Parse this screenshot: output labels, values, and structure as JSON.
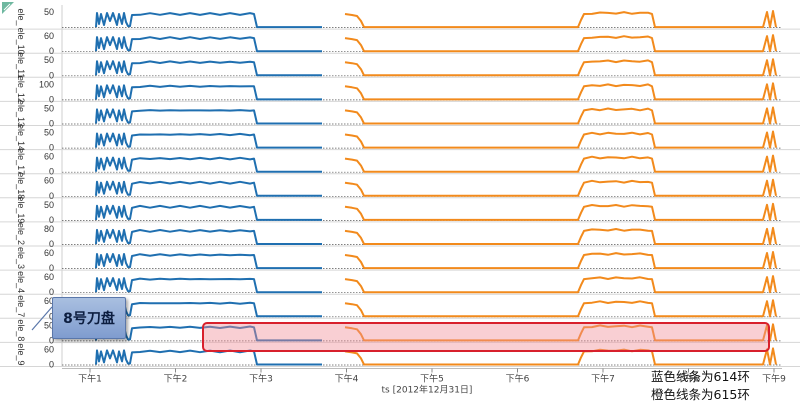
{
  "chart_data": {
    "type": "line",
    "xlabel": "ts [2012年12月31日]",
    "x_ticks": [
      "下午1",
      "下午2",
      "下午3",
      "下午4",
      "下午5",
      "下午6",
      "下午7",
      "下午8",
      "下午9"
    ],
    "series_colors": {
      "614": "#1f6fb0",
      "615": "#f28a1c"
    },
    "rows": [
      {
        "label": "ele_",
        "ticks": [
          "50",
          ""
        ]
      },
      {
        "label": "ele_10",
        "ticks": [
          "60",
          "0"
        ]
      },
      {
        "label": "ele_11",
        "ticks": [
          "50",
          "0"
        ]
      },
      {
        "label": "ele_12",
        "ticks": [
          "100",
          "0"
        ]
      },
      {
        "label": "ele_13",
        "ticks": [
          "50",
          "0"
        ]
      },
      {
        "label": "ele_14",
        "ticks": [
          "50",
          "0"
        ]
      },
      {
        "label": "ele_17",
        "ticks": [
          "60",
          "0"
        ]
      },
      {
        "label": "ele_18",
        "ticks": [
          "60",
          "0"
        ]
      },
      {
        "label": "ele_19",
        "ticks": [
          "50",
          "0"
        ]
      },
      {
        "label": "ele_2",
        "ticks": [
          "80",
          "0"
        ]
      },
      {
        "label": "ele_3",
        "ticks": [
          "60",
          "0"
        ]
      },
      {
        "label": "ele_4",
        "ticks": [
          "60",
          "0"
        ]
      },
      {
        "label": "ele_7",
        "ticks": [
          "60",
          "0"
        ]
      },
      {
        "label": "ele_8",
        "ticks": [
          "50",
          "0"
        ]
      },
      {
        "label": "ele_9",
        "ticks": [
          "60",
          "0"
        ]
      }
    ],
    "highlighted_row": "ele_8"
  },
  "annotations": {
    "callout": "8号刀盘",
    "note_blue": "蓝色线条为614环",
    "note_orange": "橙色线条为615环"
  }
}
